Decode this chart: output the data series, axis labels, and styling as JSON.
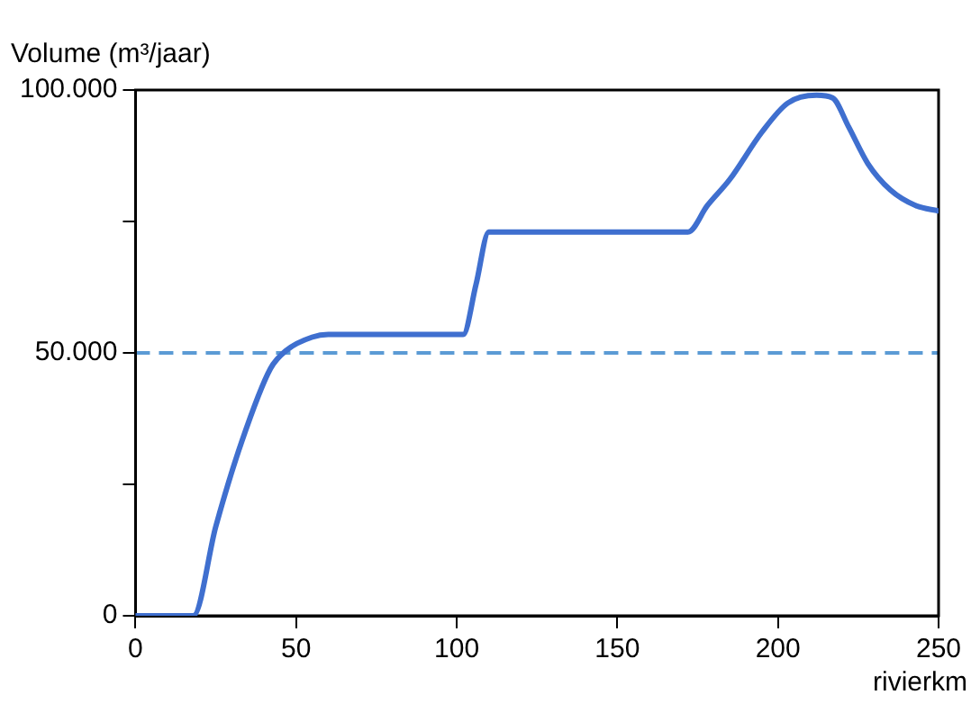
{
  "chart_data": {
    "type": "line",
    "ylabel": "Volume (m³/jaar)",
    "xlabel": "rivierkm",
    "x": [
      0,
      18,
      25,
      33,
      42,
      47,
      55,
      60,
      102,
      106,
      110,
      172,
      178,
      185,
      195,
      203,
      212,
      217,
      222,
      228,
      235,
      243,
      250
    ],
    "series": [
      {
        "color": "#3f6fcf",
        "values": [
          0,
          0,
          17000,
          33000,
          47000,
          50500,
          53000,
          53500,
          53500,
          63000,
          73000,
          73000,
          78000,
          83000,
          92000,
          97500,
          99000,
          98500,
          93000,
          86000,
          81000,
          78000,
          77000
        ]
      }
    ],
    "xlim": [
      0,
      250
    ],
    "xticks": [
      0,
      50,
      100,
      150,
      200,
      250
    ],
    "ylim": [
      0,
      100000
    ],
    "yticks": [
      0,
      {
        "value": 25000,
        "label": null
      },
      {
        "value": 50000,
        "label": "50.000"
      },
      {
        "value": 75000,
        "label": null
      },
      {
        "value": 100000,
        "label": "100.000"
      }
    ],
    "ref_lines": [
      {
        "axis": "y",
        "value": 50000,
        "color": "#5b9bd5",
        "line_style": "dashed"
      }
    ],
    "grid": false,
    "legend": false,
    "marker": "none",
    "line_style": "solid"
  }
}
